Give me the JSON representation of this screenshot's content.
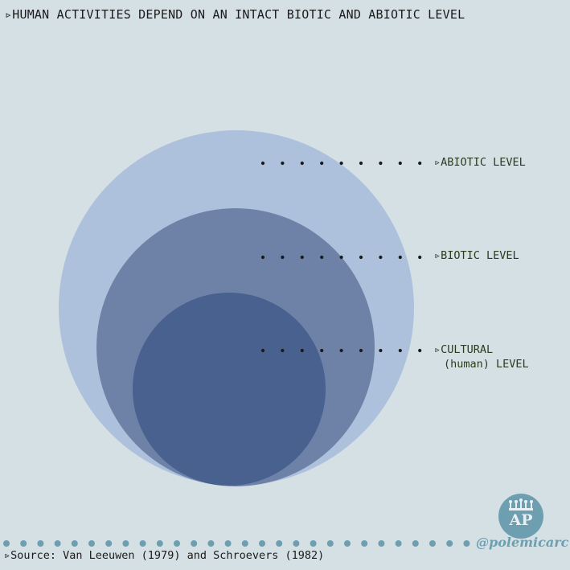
{
  "title": "▹HUMAN ACTIVITIES DEPEND ON AN INTACT BIOTIC AND ABIOTIC LEVEL",
  "levels": {
    "abiotic": "▹ABIOTIC LEVEL",
    "biotic": "▹BIOTIC LEVEL",
    "cultural_line1": "▹CULTURAL",
    "cultural_line2": "(human) LEVEL"
  },
  "source": "▹Source: Van Leeuwen (1979) and Schroevers (1982)",
  "logo": {
    "text": "AP",
    "handle": "@polemicarc"
  },
  "colors": {
    "background": "#d5e0e5",
    "abiotic": "#adc1dc",
    "biotic": "#6e82a8",
    "cultural": "#48618f",
    "accent": "#6d9fb0"
  }
}
